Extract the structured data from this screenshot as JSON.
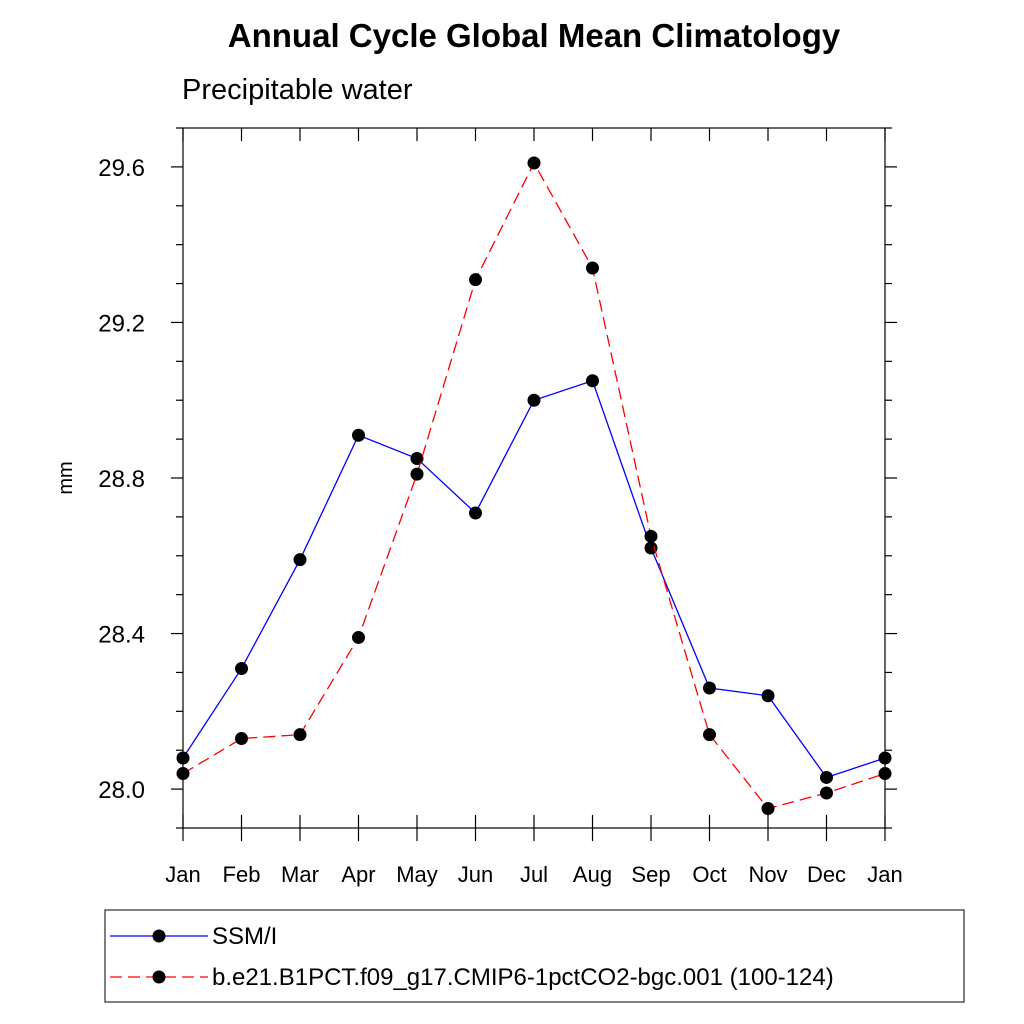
{
  "chart_data": {
    "type": "line",
    "title": "Annual Cycle Global Mean Climatology",
    "subtitle": "Precipitable water",
    "ylabel": "mm",
    "xlabel": "",
    "categories": [
      "Jan",
      "Feb",
      "Mar",
      "Apr",
      "May",
      "Jun",
      "Jul",
      "Aug",
      "Sep",
      "Oct",
      "Nov",
      "Dec",
      "Jan"
    ],
    "ylim": [
      27.9,
      29.7
    ],
    "yticks": [
      28.0,
      28.4,
      28.8,
      29.2,
      29.6
    ],
    "ytick_labels": [
      "28.0",
      "28.4",
      "28.8",
      "29.2",
      "29.6"
    ],
    "series": [
      {
        "name": "SSM/I",
        "color": "#0000ff",
        "dash": "solid",
        "values": [
          28.08,
          28.31,
          28.59,
          28.91,
          28.85,
          28.71,
          29.0,
          29.05,
          28.62,
          28.26,
          28.24,
          28.03,
          28.08
        ]
      },
      {
        "name": "b.e21.B1PCT.f09_g17.CMIP6-1pctCO2-bgc.001 (100-124)",
        "color": "#ff0000",
        "dash": "dashed",
        "values": [
          28.04,
          28.13,
          28.14,
          28.39,
          28.81,
          29.31,
          29.61,
          29.34,
          28.65,
          28.14,
          27.95,
          27.99,
          28.04
        ]
      }
    ],
    "legend_position": "bottom"
  }
}
